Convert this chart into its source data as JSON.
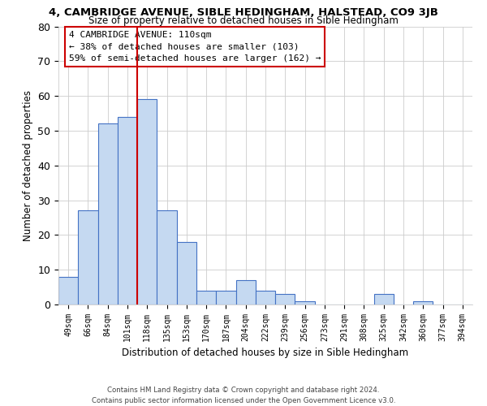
{
  "title": "4, CAMBRIDGE AVENUE, SIBLE HEDINGHAM, HALSTEAD, CO9 3JB",
  "subtitle": "Size of property relative to detached houses in Sible Hedingham",
  "xlabel": "Distribution of detached houses by size in Sible Hedingham",
  "ylabel": "Number of detached properties",
  "categories": [
    "49sqm",
    "66sqm",
    "84sqm",
    "101sqm",
    "118sqm",
    "135sqm",
    "153sqm",
    "170sqm",
    "187sqm",
    "204sqm",
    "222sqm",
    "239sqm",
    "256sqm",
    "273sqm",
    "291sqm",
    "308sqm",
    "325sqm",
    "342sqm",
    "360sqm",
    "377sqm",
    "394sqm"
  ],
  "values": [
    8,
    27,
    52,
    54,
    59,
    27,
    18,
    4,
    4,
    7,
    4,
    3,
    1,
    0,
    0,
    0,
    3,
    0,
    1,
    0,
    0
  ],
  "bar_color": "#c5d9f1",
  "bar_edge_color": "#4472c4",
  "vline_x": 3.5,
  "vline_color": "#cc0000",
  "ylim": [
    0,
    80
  ],
  "yticks": [
    0,
    10,
    20,
    30,
    40,
    50,
    60,
    70,
    80
  ],
  "annotation_title": "4 CAMBRIDGE AVENUE: 110sqm",
  "annotation_line1": "← 38% of detached houses are smaller (103)",
  "annotation_line2": "59% of semi-detached houses are larger (162) →",
  "annotation_box_color": "#ffffff",
  "annotation_box_edge": "#cc0000",
  "footer_line1": "Contains HM Land Registry data © Crown copyright and database right 2024.",
  "footer_line2": "Contains public sector information licensed under the Open Government Licence v3.0.",
  "background_color": "#ffffff",
  "grid_color": "#cccccc"
}
